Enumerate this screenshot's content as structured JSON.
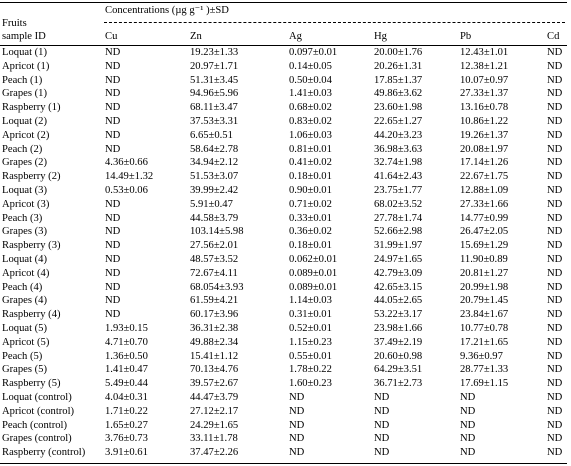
{
  "table": {
    "header": {
      "concentrations": "Concentrations (µg g⁻¹ )±SD",
      "fruits": "Fruits",
      "sample_id": "sample ID",
      "columns": [
        "Cu",
        "Zn",
        "Ag",
        "Hg",
        "Pb",
        "Cd"
      ]
    },
    "rows": [
      [
        "Loquat (1)",
        "ND",
        "19.23±1.33",
        "0.097±0.01",
        "20.00±1.76",
        "12.43±1.01",
        "ND"
      ],
      [
        "Apricot (1)",
        "ND",
        "20.97±1.71",
        "0.14±0.05",
        "20.26±1.31",
        "12.38±1.21",
        "ND"
      ],
      [
        "Peach (1)",
        "ND",
        "51.31±3.45",
        "0.50±0.04",
        "17.85±1.37",
        "10.07±0.97",
        "ND"
      ],
      [
        "Grapes (1)",
        "ND",
        "94.96±5.96",
        "1.41±0.03",
        "49.86±3.62",
        "27.33±1.37",
        "ND"
      ],
      [
        "Raspberry (1)",
        "ND",
        "68.11±3.47",
        "0.68±0.02",
        "23.60±1.98",
        "13.16±0.78",
        "ND"
      ],
      [
        "Loquat (2)",
        "ND",
        "37.53±3.31",
        "0.83±0.02",
        "22.65±1.27",
        "10.86±1.22",
        "ND"
      ],
      [
        "Apricot (2)",
        "ND",
        "6.65±0.51",
        "1.06±0.03",
        "44.20±3.23",
        "19.26±1.37",
        "ND"
      ],
      [
        "Peach (2)",
        "ND",
        "58.64±2.78",
        "0.81±0.01",
        "36.98±3.63",
        "20.08±1.97",
        "ND"
      ],
      [
        "Grapes (2)",
        "4.36±0.66",
        "34.94±2.12",
        "0.41±0.02",
        "32.74±1.98",
        "17.14±1.26",
        "ND"
      ],
      [
        "Raspberry (2)",
        "14.49±1.32",
        "51.53±3.07",
        "0.18±0.01",
        "41.64±2.43",
        "22.67±1.75",
        "ND"
      ],
      [
        "Loquat (3)",
        "0.53±0.06",
        "39.99±2.42",
        "0.90±0.01",
        "23.75±1.77",
        "12.88±1.09",
        "ND"
      ],
      [
        "Apricot (3)",
        "ND",
        "5.91±0.47",
        "0.71±0.02",
        "68.02±3.52",
        "27.33±1.66",
        "ND"
      ],
      [
        "Peach (3)",
        "ND",
        "44.58±3.79",
        "0.33±0.01",
        "27.78±1.74",
        "14.77±0.99",
        "ND"
      ],
      [
        "Grapes (3)",
        "ND",
        "103.14±5.98",
        "0.36±0.02",
        "52.66±2.98",
        "26.47±2.05",
        "ND"
      ],
      [
        "Raspberry (3)",
        "ND",
        "27.56±2.01",
        "0.18±0.01",
        "31.99±1.97",
        "15.69±1.29",
        "ND"
      ],
      [
        "Loquat (4)",
        "ND",
        "48.57±3.52",
        "0.062±0.01",
        "24.97±1.65",
        "11.90±0.89",
        "ND"
      ],
      [
        "Apricot (4)",
        "ND",
        "72.67±4.11",
        "0.089±0.01",
        "42.79±3.09",
        "20.81±1.27",
        "ND"
      ],
      [
        "Peach (4)",
        "ND",
        "68.054±3.93",
        "0.089±0.01",
        "42.65±3.15",
        "20.99±1.98",
        "ND"
      ],
      [
        "Grapes (4)",
        "ND",
        "61.59±4.21",
        "1.14±0.03",
        "44.05±2.65",
        "20.79±1.45",
        "ND"
      ],
      [
        "Raspberry (4)",
        "ND",
        "60.17±3.96",
        "0.31±0.01",
        "53.22±3.17",
        "23.84±1.67",
        "ND"
      ],
      [
        "Loquat (5)",
        "1.93±0.15",
        "36.31±2.38",
        "0.52±0.01",
        "23.98±1.66",
        "10.77±0.78",
        "ND"
      ],
      [
        "Apricot (5)",
        "4.71±0.70",
        "49.88±2.34",
        "1.15±0.23",
        "37.49±2.19",
        "17.21±1.65",
        "ND"
      ],
      [
        "Peach (5)",
        "1.36±0.50",
        "15.41±1.12",
        "0.55±0.01",
        "20.60±0.98",
        "9.36±0.97",
        "ND"
      ],
      [
        "Grapes (5)",
        "1.41±0.47",
        "70.13±4.76",
        "1.78±0.22",
        "64.29±3.51",
        "28.77±1.33",
        "ND"
      ],
      [
        "Raspberry (5)",
        "5.49±0.44",
        "39.57±2.67",
        "1.60±0.23",
        "36.71±2.73",
        "17.69±1.15",
        "ND"
      ],
      [
        "Loquat (control)",
        "4.04±0.31",
        "44.47±3.79",
        "ND",
        "ND",
        "ND",
        "ND"
      ],
      [
        "Apricot (control)",
        "1.71±0.22",
        "27.12±2.17",
        "ND",
        "ND",
        "ND",
        "ND"
      ],
      [
        "Peach (control)",
        "1.65±0.27",
        "24.29±1.65",
        "ND",
        "ND",
        "ND",
        "ND"
      ],
      [
        "Grapes (control)",
        "3.76±0.73",
        "33.11±1.78",
        "ND",
        "ND",
        "ND",
        "ND"
      ],
      [
        "Raspberry (control)",
        "3.91±0.61",
        "37.47±2.26",
        "ND",
        "ND",
        "ND",
        "ND"
      ]
    ]
  }
}
